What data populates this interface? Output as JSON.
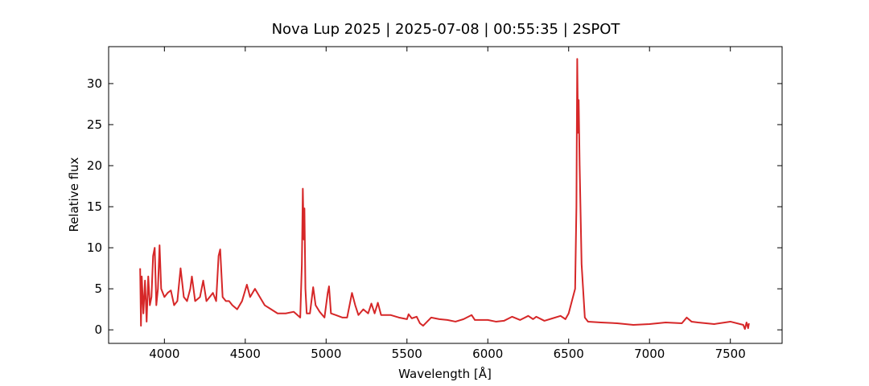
{
  "chart_data": {
    "type": "line",
    "title": "Nova Lup 2025 | 2025-07-08 | 00:55:35 | 2SPOT",
    "x_label": "Wavelength [Å]",
    "y_label": "Relative flux",
    "color": "#d62728",
    "xlim": [
      3655,
      7820
    ],
    "ylim": [
      -1.65,
      34.5
    ],
    "xticks": [
      4000,
      4500,
      5000,
      5500,
      6000,
      6500,
      7000,
      7500
    ],
    "yticks": [
      0,
      5,
      10,
      15,
      20,
      25,
      30
    ],
    "x": [
      3850,
      3855,
      3860,
      3870,
      3880,
      3890,
      3900,
      3910,
      3920,
      3930,
      3940,
      3950,
      3960,
      3970,
      3980,
      4000,
      4020,
      4040,
      4060,
      4080,
      4100,
      4120,
      4140,
      4160,
      4170,
      4190,
      4220,
      4240,
      4260,
      4280,
      4300,
      4320,
      4335,
      4345,
      4360,
      4380,
      4400,
      4420,
      4450,
      4480,
      4510,
      4530,
      4560,
      4590,
      4620,
      4660,
      4700,
      4750,
      4800,
      4840,
      4850,
      4856,
      4862,
      4866,
      4872,
      4880,
      4900,
      4920,
      4935,
      4960,
      4990,
      5010,
      5018,
      5030,
      5060,
      5100,
      5130,
      5160,
      5180,
      5200,
      5230,
      5260,
      5280,
      5300,
      5320,
      5340,
      5400,
      5450,
      5500,
      5510,
      5530,
      5560,
      5580,
      5600,
      5650,
      5700,
      5750,
      5800,
      5850,
      5900,
      5920,
      6000,
      6050,
      6100,
      6150,
      6200,
      6250,
      6280,
      6300,
      6350,
      6400,
      6450,
      6480,
      6500,
      6520,
      6540,
      6548,
      6553,
      6558,
      6562,
      6568,
      6580,
      6600,
      6620,
      6700,
      6800,
      6900,
      7000,
      7100,
      7200,
      7230,
      7260,
      7300,
      7400,
      7500,
      7580,
      7590,
      7600,
      7610,
      7615
    ],
    "values": [
      7.5,
      0.5,
      6.5,
      2,
      6,
      1,
      6.5,
      3,
      4,
      9,
      10,
      3,
      5,
      10.3,
      5,
      4,
      4.5,
      4.8,
      3,
      3.5,
      7.5,
      4,
      3.5,
      5,
      6.5,
      3.5,
      4,
      6,
      3.5,
      4,
      4.5,
      3.5,
      9,
      9.8,
      4,
      3.5,
      3.5,
      3,
      2.5,
      3.5,
      5.5,
      4,
      5,
      4,
      3,
      2.5,
      2,
      2,
      2.2,
      1.5,
      8,
      17.2,
      11,
      14.8,
      5,
      2,
      2,
      5.2,
      3,
      2.2,
      1.5,
      4.5,
      5.3,
      2,
      1.8,
      1.5,
      1.5,
      4.5,
      3,
      1.8,
      2.5,
      2,
      3.2,
      2,
      3.3,
      1.8,
      1.8,
      1.5,
      1.3,
      1.9,
      1.4,
      1.6,
      0.8,
      0.5,
      1.5,
      1.3,
      1.2,
      1,
      1.3,
      1.8,
      1.2,
      1.2,
      1,
      1.1,
      1.6,
      1.2,
      1.7,
      1.3,
      1.6,
      1.1,
      1.4,
      1.7,
      1.3,
      2,
      3.5,
      5,
      15,
      33,
      24,
      28,
      20,
      8,
      1.5,
      1,
      0.9,
      0.8,
      0.6,
      0.7,
      0.9,
      0.8,
      1.5,
      1,
      0.9,
      0.7,
      1,
      0.6,
      0.1,
      0.9,
      0.2,
      0.8
    ]
  }
}
